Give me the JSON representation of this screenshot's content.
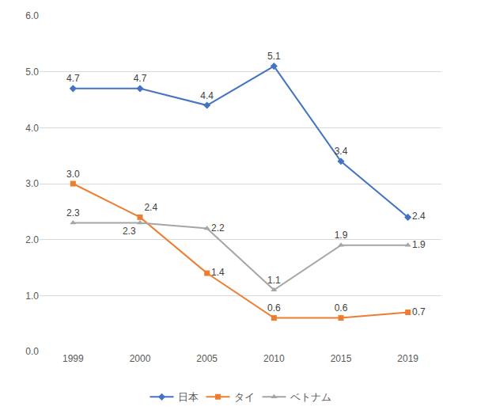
{
  "chart_data": {
    "type": "line",
    "categories": [
      "1999",
      "2000",
      "2005",
      "2010",
      "2015",
      "2019"
    ],
    "series": [
      {
        "name": "日本",
        "color": "#4472c4",
        "marker": "diamond",
        "values": [
          4.7,
          4.7,
          4.4,
          5.1,
          3.4,
          2.4
        ],
        "value_labels": [
          "4.7",
          "4.7",
          "4.4",
          "5.1",
          "3.4",
          "2.4"
        ]
      },
      {
        "name": "タイ",
        "color": "#ed7d31",
        "marker": "square",
        "values": [
          3.0,
          2.4,
          1.4,
          0.6,
          0.6,
          0.7
        ],
        "value_labels": [
          "3.0",
          "2.4",
          "1.4",
          "0.6",
          "0.6",
          "0.7"
        ]
      },
      {
        "name": "ベトナム",
        "color": "#a5a5a5",
        "marker": "triangle-up",
        "values": [
          2.3,
          2.3,
          2.2,
          1.1,
          1.9,
          1.9
        ],
        "value_labels": [
          "2.3",
          "2.3",
          "2.2",
          "1.1",
          "1.9",
          "1.9"
        ]
      }
    ],
    "ylim": [
      0,
      6
    ],
    "yticks": [
      {
        "value": 0,
        "label": "0.0"
      },
      {
        "value": 1,
        "label": "1.0"
      },
      {
        "value": 2,
        "label": "2.0"
      },
      {
        "value": 3,
        "label": "3.0"
      },
      {
        "value": 4,
        "label": "4.0"
      },
      {
        "value": 5,
        "label": "5.0"
      },
      {
        "value": 6,
        "label": "6.0"
      }
    ],
    "grid": true,
    "legend": "bottom",
    "data_labels": true
  }
}
